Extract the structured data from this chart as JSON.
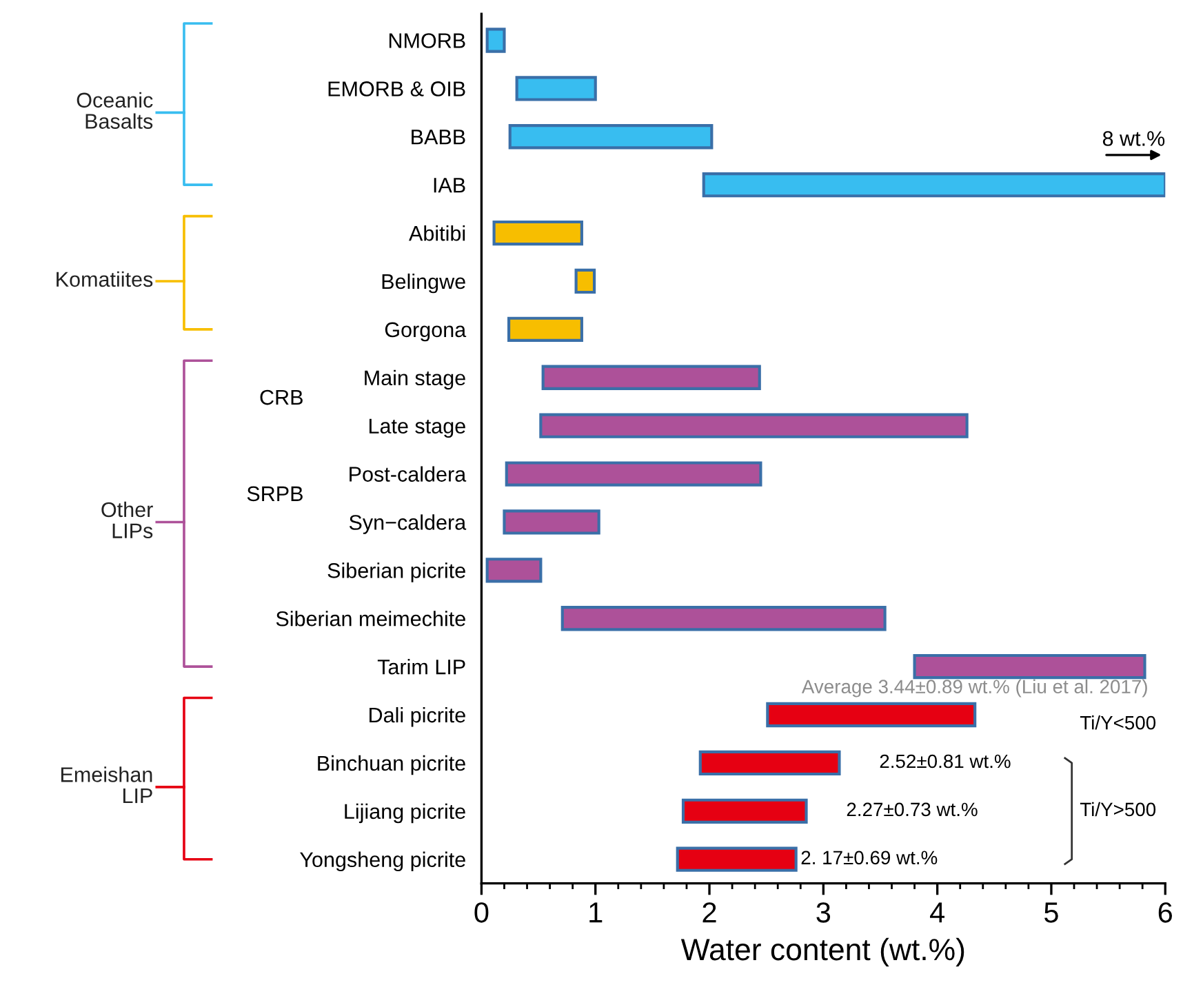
{
  "chart_data": {
    "type": "bar",
    "orientation": "horizontal",
    "xlabel": "Water content (wt.%)",
    "categories": [
      "NMORB",
      "EMORB & OIB",
      "BABB",
      "IAB",
      "Abitibi",
      "Belingwe",
      "Gorgona",
      "Main stage",
      "Late stage",
      "Post-caldera",
      "Syn−caldera",
      "Siberian picrite",
      "Siberian meimechite",
      "Tarim LIP",
      "Dali picrite",
      "Binchuan picrite",
      "Lijiang picrite",
      "Yongsheng picrite"
    ],
    "series": [
      {
        "name": "Oceanic\nBasalts",
        "color": "#38bdf0",
        "base": [
          0.05,
          0.31,
          0.25,
          1.95,
          null,
          null,
          null,
          null,
          null,
          null,
          null,
          null,
          null,
          null,
          null,
          null,
          null,
          null
        ],
        "values": [
          0.15,
          0.69,
          1.77,
          4.05,
          null,
          null,
          null,
          null,
          null,
          null,
          null,
          null,
          null,
          null,
          null,
          null,
          null,
          null
        ]
      },
      {
        "name": "Komatiites",
        "color": "#f7be00",
        "base": [
          null,
          null,
          null,
          null,
          0.11,
          0.83,
          0.24,
          null,
          null,
          null,
          null,
          null,
          null,
          null,
          null,
          null,
          null,
          null
        ],
        "values": [
          null,
          null,
          null,
          null,
          0.77,
          0.16,
          0.64,
          null,
          null,
          null,
          null,
          null,
          null,
          null,
          null,
          null,
          null,
          null
        ]
      },
      {
        "name": "Other\nLIPs",
        "color": "#ad5199",
        "base": [
          null,
          null,
          null,
          null,
          null,
          null,
          null,
          0.54,
          0.52,
          0.22,
          0.2,
          0.05,
          0.71,
          3.8,
          null,
          null,
          null,
          null
        ],
        "values": [
          null,
          null,
          null,
          null,
          null,
          null,
          null,
          1.9,
          3.74,
          2.23,
          0.83,
          0.47,
          2.83,
          2.02,
          null,
          null,
          null,
          null
        ]
      },
      {
        "name": "Emeishan\nLIP",
        "color": "#e60012",
        "base": [
          null,
          null,
          null,
          null,
          null,
          null,
          null,
          null,
          null,
          null,
          null,
          null,
          null,
          null,
          2.51,
          1.92,
          1.77,
          1.72
        ],
        "values": [
          null,
          null,
          null,
          null,
          null,
          null,
          null,
          null,
          null,
          null,
          null,
          null,
          null,
          null,
          1.82,
          1.22,
          1.08,
          1.04
        ]
      }
    ],
    "xlim": [
      0,
      6
    ],
    "xticks": [
      0,
      1,
      2,
      3,
      4,
      5,
      6
    ],
    "legend": "left",
    "annotations": [
      "CRB",
      "SRPB",
      {
        "text": "8 wt.%",
        "x": 6,
        "y": "IAB"
      },
      "Average 3.44±0.89 wt.% (Liu et al. 2017)",
      "Ti/Y<500",
      "2.52±0.81 wt.%",
      "2.27±0.73 wt.%",
      "2. 17±0.69 wt.%",
      "Ti/Y>500"
    ]
  }
}
